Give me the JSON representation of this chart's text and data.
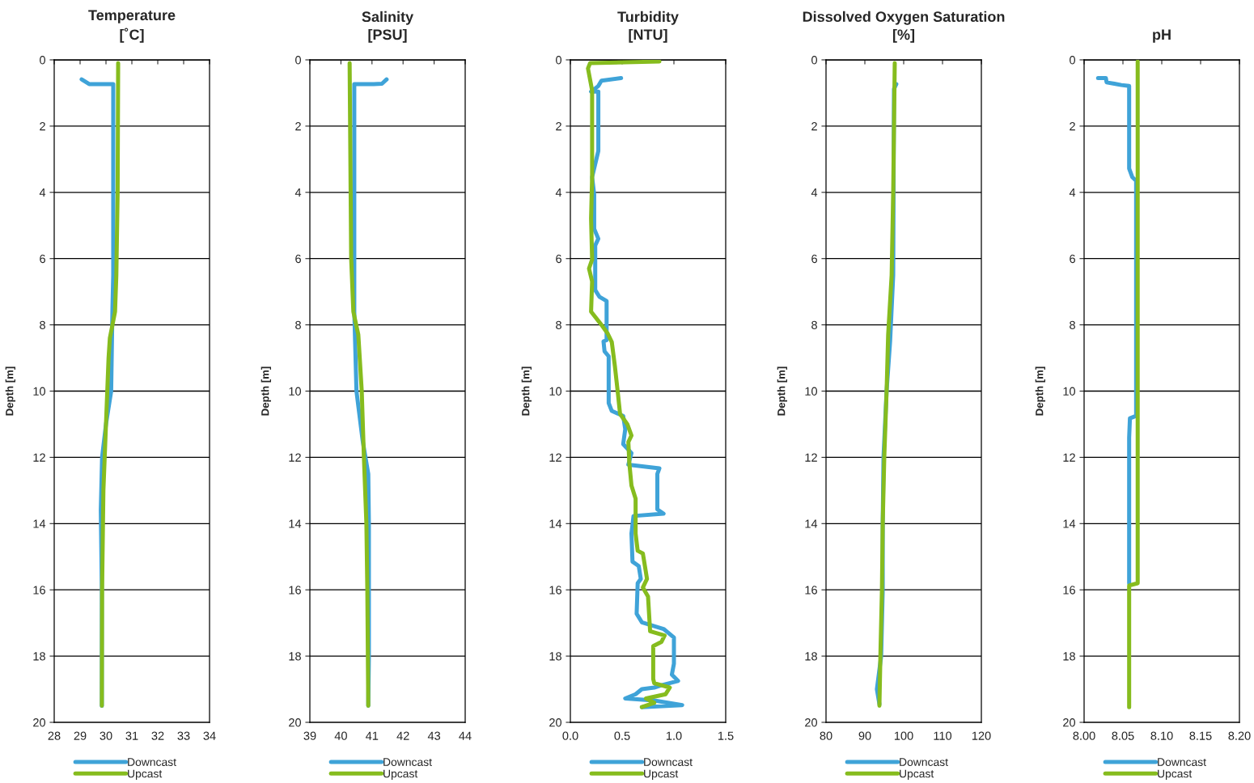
{
  "chart_data": [
    {
      "type": "line",
      "title": "Temperature\n[˚C]",
      "ylabel": "Depth [m]",
      "xlim": [
        28,
        34
      ],
      "xticks": [
        28,
        29,
        30,
        31,
        32,
        33,
        34
      ],
      "ylim": [
        20,
        0
      ],
      "yticks": [
        0,
        2,
        4,
        6,
        8,
        10,
        12,
        14,
        16,
        18,
        20
      ],
      "grid": "y",
      "legend": "bottom",
      "line_style": "solid",
      "marker": "none",
      "series": [
        {
          "name": "Downcast",
          "color": "#3fa3d8",
          "x": [
            29.06,
            29.35,
            30.28,
            30.28,
            30.28,
            30.25,
            30.2,
            30.0,
            29.85,
            29.8,
            29.84,
            29.84
          ],
          "values": [
            0.59,
            0.73,
            0.73,
            0.9,
            6.5,
            7.5,
            10,
            11,
            12,
            13.6,
            16,
            19.5
          ]
        },
        {
          "name": "Upcast",
          "color": "#86bc1e",
          "x": [
            29.84,
            29.85,
            29.9,
            29.95,
            30.0,
            30.05,
            30.1,
            30.15,
            30.35,
            30.4,
            30.45,
            30.47
          ],
          "values": [
            19.5,
            16,
            13,
            12,
            11,
            10,
            9,
            8.4,
            7.6,
            6.5,
            4,
            0.1
          ]
        }
      ]
    },
    {
      "type": "line",
      "title": "Salinity\n[PSU]",
      "ylabel": "Depth [m]",
      "xlim": [
        39,
        44
      ],
      "xticks": [
        39,
        40,
        41,
        42,
        43,
        44
      ],
      "ylim": [
        20,
        0
      ],
      "yticks": [
        0,
        2,
        4,
        6,
        8,
        10,
        12,
        14,
        16,
        18,
        20
      ],
      "grid": "y",
      "legend": "bottom",
      "line_style": "solid",
      "marker": "none",
      "series": [
        {
          "name": "Downcast",
          "color": "#3fa3d8",
          "x": [
            41.47,
            41.32,
            41.06,
            40.43,
            40.43,
            40.43,
            40.5,
            40.7,
            40.88,
            40.9,
            40.9,
            40.88
          ],
          "values": [
            0.59,
            0.72,
            0.73,
            0.73,
            0.9,
            7.6,
            10,
            11.5,
            12.5,
            14,
            18,
            19.5
          ]
        },
        {
          "name": "Upcast",
          "color": "#86bc1e",
          "x": [
            40.88,
            40.85,
            40.82,
            40.74,
            40.67,
            40.56,
            40.4,
            40.33,
            40.28
          ],
          "values": [
            19.5,
            16,
            14,
            12,
            10,
            8.3,
            7.6,
            6,
            0.1
          ]
        }
      ]
    },
    {
      "type": "line",
      "title": "Turbidity\n[NTU]",
      "ylabel": "Depth [m]",
      "xlim": [
        0,
        1.5
      ],
      "xticks": [
        {
          "value": 0,
          "label": "0.0"
        },
        {
          "value": 0.5,
          "label": "0.5"
        },
        {
          "value": 1.0,
          "label": "1.0"
        },
        {
          "value": 1.5,
          "label": "1.5"
        }
      ],
      "ylim": [
        20,
        0
      ],
      "yticks": [
        0,
        2,
        4,
        6,
        8,
        10,
        12,
        14,
        16,
        18,
        20
      ],
      "grid": "y",
      "legend": "bottom",
      "line_style": "solid",
      "marker": "none",
      "series": [
        {
          "name": "Downcast",
          "color": "#3fa3d8",
          "x": [
            0.49,
            0.3,
            0.27,
            0.2,
            0.27,
            0.27,
            0.21,
            0.23,
            0.23,
            0.27,
            0.24,
            0.24,
            0.28,
            0.35,
            0.35,
            0.32,
            0.33,
            0.37,
            0.37,
            0.4,
            0.51,
            0.53,
            0.51,
            0.59,
            0.56,
            0.86,
            0.84,
            0.84,
            0.9,
            0.61,
            0.59,
            0.6,
            0.66,
            0.68,
            0.65,
            0.64,
            0.69,
            0.9,
            1.0,
            1.0,
            0.98,
            1.04,
            0.88,
            0.81,
            0.69,
            0.63,
            0.53,
            0.81,
            1.08,
            0.69
          ],
          "values": [
            0.55,
            0.63,
            0.79,
            0.96,
            0.96,
            2.75,
            3.54,
            4.07,
            5.1,
            5.4,
            5.6,
            6.95,
            7.15,
            7.28,
            8.46,
            8.5,
            8.8,
            8.95,
            10.36,
            10.6,
            10.75,
            11.15,
            11.6,
            11.87,
            12.22,
            12.33,
            12.5,
            13.57,
            13.7,
            13.77,
            14.3,
            15.15,
            15.28,
            15.67,
            15.8,
            16.72,
            16.98,
            17.18,
            17.44,
            18.23,
            18.56,
            18.75,
            18.88,
            18.95,
            19.0,
            19.15,
            19.28,
            19.34,
            19.48,
            19.54
          ]
        },
        {
          "name": "Upcast",
          "color": "#86bc1e",
          "x": [
            0.69,
            0.81,
            0.73,
            0.92,
            0.96,
            0.81,
            0.8,
            0.8,
            0.88,
            0.91,
            0.77,
            0.75,
            0.7,
            0.74,
            0.7,
            0.65,
            0.63,
            0.63,
            0.59,
            0.57,
            0.56,
            0.59,
            0.55,
            0.48,
            0.46,
            0.43,
            0.4,
            0.36,
            0.3,
            0.2,
            0.21,
            0.18,
            0.21,
            0.2,
            0.21,
            0.21,
            0.17,
            0.19,
            0.86
          ],
          "values": [
            19.54,
            19.41,
            19.28,
            19.15,
            18.95,
            18.82,
            18.69,
            17.7,
            17.57,
            17.38,
            17.25,
            16.2,
            15.93,
            15.67,
            14.9,
            14.82,
            14.3,
            13.25,
            12.85,
            12.2,
            11.54,
            11.34,
            11.0,
            10.69,
            10.1,
            9.25,
            8.52,
            8.26,
            8.0,
            7.6,
            6.69,
            6.3,
            6.03,
            4.79,
            3.54,
            0.92,
            0.26,
            0.1,
            0.05
          ]
        }
      ]
    },
    {
      "type": "line",
      "title": "Dissolved Oxygen Saturation\n[%]",
      "ylabel": "Depth [m]",
      "xlim": [
        80,
        120
      ],
      "xticks": [
        80,
        90,
        100,
        110,
        120
      ],
      "ylim": [
        20,
        0
      ],
      "yticks": [
        0,
        2,
        4,
        6,
        8,
        10,
        12,
        14,
        16,
        18,
        20
      ],
      "grid": "y",
      "legend": "bottom",
      "line_style": "solid",
      "marker": "none",
      "series": [
        {
          "name": "Downcast",
          "color": "#3fa3d8",
          "x": [
            98.1,
            97.5,
            97.3,
            96.5,
            95.6,
            94.8,
            94.6,
            94.6,
            94.2,
            93.1,
            93.75
          ],
          "values": [
            0.73,
            0.88,
            6.5,
            8.5,
            10,
            12,
            14,
            16,
            18,
            19.0,
            19.45
          ]
        },
        {
          "name": "Upcast",
          "color": "#86bc1e",
          "x": [
            93.75,
            94.0,
            94.4,
            94.6,
            95.0,
            95.6,
            96.0,
            96.9,
            97.3,
            97.7
          ],
          "values": [
            19.5,
            18,
            16,
            14,
            12,
            10,
            8.3,
            6.5,
            4,
            0.1
          ]
        }
      ]
    },
    {
      "type": "line",
      "title": "pH",
      "ylabel": "Depth [m]",
      "xlim": [
        8.0,
        8.2
      ],
      "xticks": [
        {
          "value": 8.0,
          "label": "8.00"
        },
        {
          "value": 8.05,
          "label": "8.05"
        },
        {
          "value": 8.1,
          "label": "8.10"
        },
        {
          "value": 8.15,
          "label": "8.15"
        },
        {
          "value": 8.2,
          "label": "8.20"
        }
      ],
      "ylim": [
        20,
        0
      ],
      "yticks": [
        0,
        2,
        4,
        6,
        8,
        10,
        12,
        14,
        16,
        18,
        20
      ],
      "grid": "y",
      "legend": "bottom",
      "line_style": "solid",
      "marker": "none",
      "series": [
        {
          "name": "Downcast",
          "color": "#3fa3d8",
          "x": [
            8.018,
            8.028,
            8.029,
            8.039,
            8.048,
            8.058,
            8.058,
            8.062,
            8.067,
            8.067,
            8.059,
            8.058,
            8.058
          ],
          "values": [
            0.55,
            0.55,
            0.68,
            0.72,
            0.76,
            0.79,
            3.28,
            3.54,
            3.65,
            10.75,
            10.82,
            11.41,
            15.8
          ]
        },
        {
          "name": "Upcast",
          "color": "#86bc1e",
          "x": [
            8.058,
            8.058,
            8.069,
            8.069
          ],
          "values": [
            19.54,
            15.87,
            15.8,
            0.05
          ]
        }
      ]
    }
  ]
}
